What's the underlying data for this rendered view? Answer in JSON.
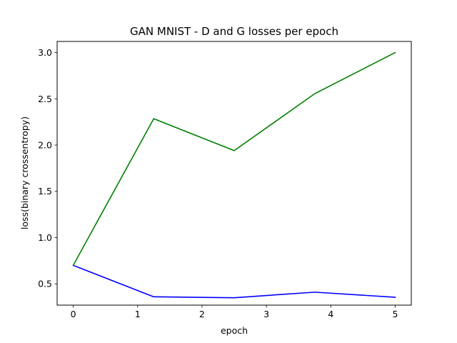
{
  "chart_data": {
    "type": "line",
    "title": "GAN MNIST - D and G losses per epoch",
    "xlabel": "epoch",
    "ylabel": "loss(binary crossentropy)",
    "xlim": [
      -0.25,
      5.25
    ],
    "ylim": [
      0.27,
      3.12
    ],
    "xticks": [
      "0",
      "1",
      "2",
      "3",
      "4",
      "5"
    ],
    "yticks": [
      "0.5",
      "1.0",
      "1.5",
      "2.0",
      "2.5",
      "3.0"
    ],
    "grid": false,
    "x": [
      0,
      1.25,
      2.5,
      3.75,
      5
    ],
    "series": [
      {
        "color": "#0000ff",
        "values": [
          0.7,
          0.36,
          0.35,
          0.41,
          0.355
        ]
      },
      {
        "color": "#008000",
        "values": [
          0.7,
          2.285,
          1.94,
          2.555,
          3.0
        ]
      }
    ]
  }
}
